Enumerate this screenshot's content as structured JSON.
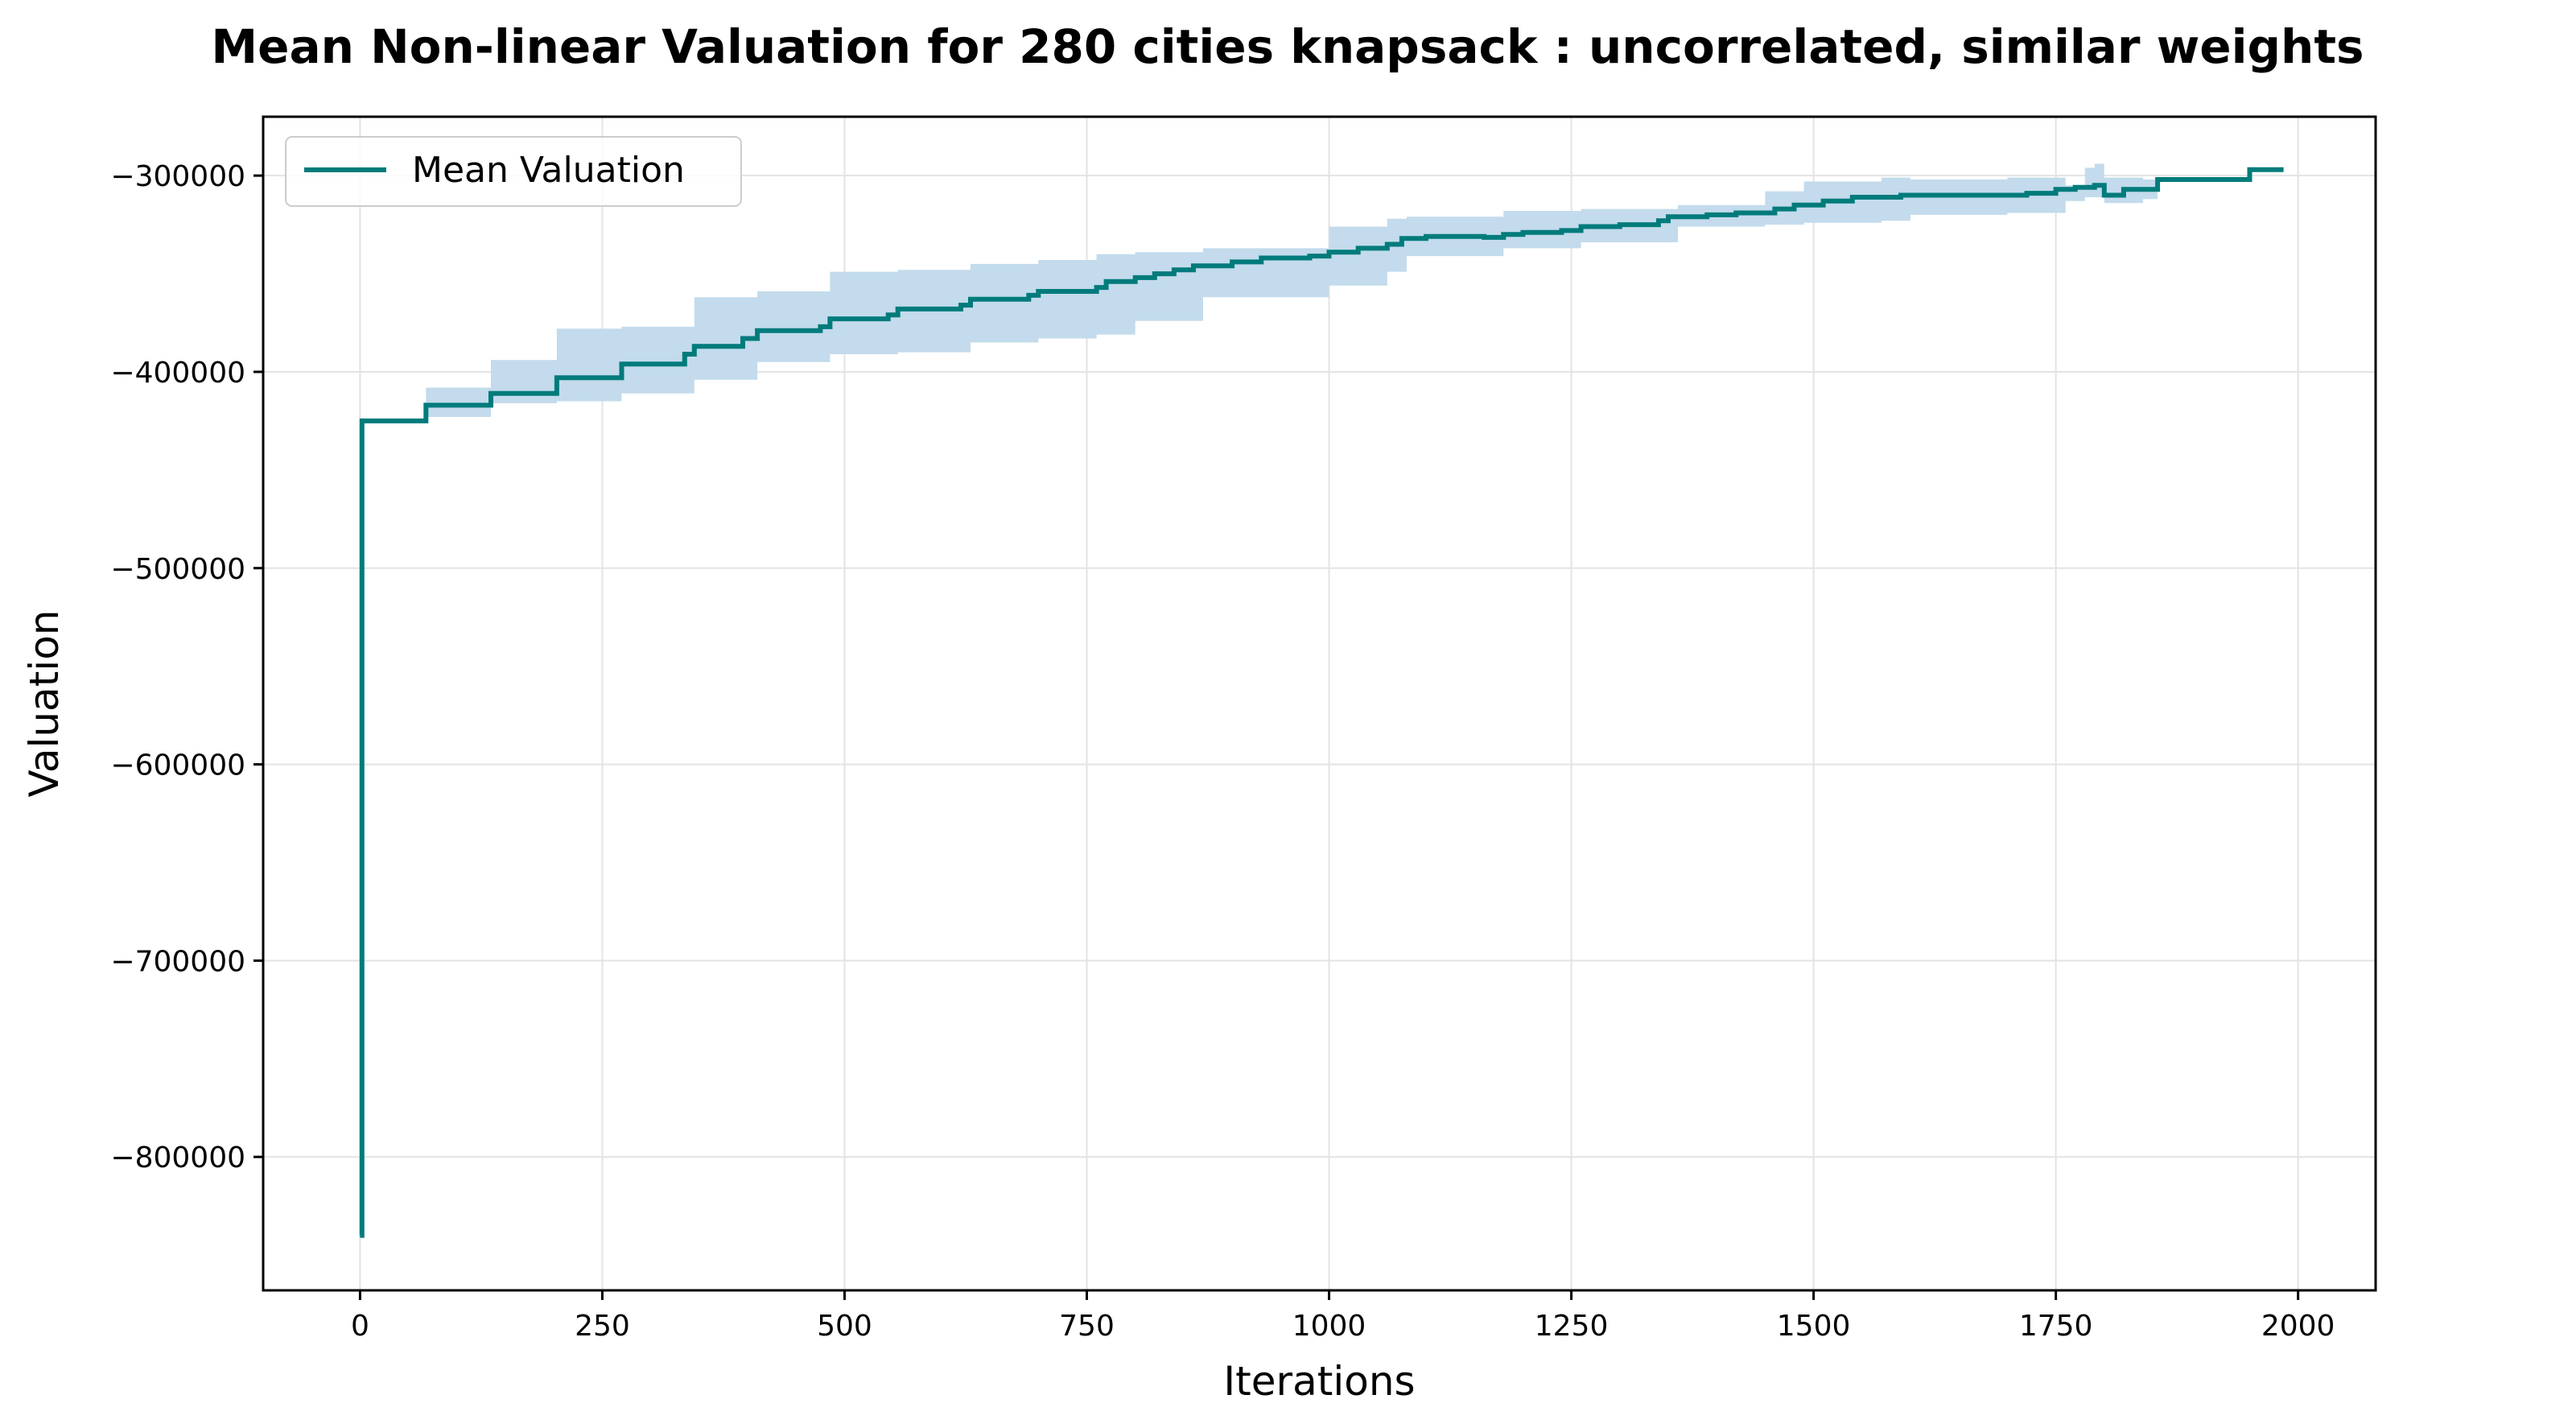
{
  "chart_data": {
    "type": "line",
    "title": "Mean Non-linear Valuation for 280 cities knapsack : uncorrelated, similar weights",
    "xlabel": "Iterations",
    "ylabel": "Valuation",
    "xlim": [
      -100,
      2080
    ],
    "ylim": [
      -868000,
      -270000
    ],
    "x_ticks": [
      0,
      250,
      500,
      750,
      1000,
      1250,
      1500,
      1750,
      2000
    ],
    "x_tick_labels": [
      "0",
      "250",
      "500",
      "750",
      "1000",
      "1250",
      "1500",
      "1750",
      "2000"
    ],
    "y_ticks": [
      -300000,
      -400000,
      -500000,
      -600000,
      -700000,
      -800000
    ],
    "y_tick_labels": [
      "−300000",
      "−400000",
      "−500000",
      "−600000",
      "−700000",
      "−800000"
    ],
    "grid": true,
    "legend_position": "top-left",
    "series": [
      {
        "name": "Mean Valuation",
        "color": "#007b7b",
        "band_color": "#c3dbec",
        "step": [
          [
            0,
            -840000
          ],
          [
            2,
            -425000
          ],
          [
            68,
            -417000
          ],
          [
            135,
            -411000
          ],
          [
            203,
            -403000
          ],
          [
            270,
            -396000
          ],
          [
            335,
            -391000
          ],
          [
            345,
            -387000
          ],
          [
            395,
            -383000
          ],
          [
            410,
            -379000
          ],
          [
            475,
            -377000
          ],
          [
            485,
            -373000
          ],
          [
            545,
            -371000
          ],
          [
            555,
            -368000
          ],
          [
            620,
            -366000
          ],
          [
            630,
            -363000
          ],
          [
            690,
            -361000
          ],
          [
            700,
            -359000
          ],
          [
            760,
            -357000
          ],
          [
            770,
            -354000
          ],
          [
            800,
            -352000
          ],
          [
            820,
            -350000
          ],
          [
            840,
            -348000
          ],
          [
            860,
            -346000
          ],
          [
            900,
            -344000
          ],
          [
            930,
            -342000
          ],
          [
            980,
            -341000
          ],
          [
            1000,
            -339000
          ],
          [
            1030,
            -337000
          ],
          [
            1060,
            -335000
          ],
          [
            1075,
            -332000
          ],
          [
            1100,
            -331000
          ],
          [
            1160,
            -331500
          ],
          [
            1180,
            -330000
          ],
          [
            1200,
            -329000
          ],
          [
            1240,
            -328000
          ],
          [
            1260,
            -326000
          ],
          [
            1300,
            -325000
          ],
          [
            1340,
            -323000
          ],
          [
            1350,
            -321000
          ],
          [
            1390,
            -320000
          ],
          [
            1420,
            -319000
          ],
          [
            1460,
            -317000
          ],
          [
            1480,
            -315000
          ],
          [
            1510,
            -313000
          ],
          [
            1540,
            -311000
          ],
          [
            1590,
            -310000
          ],
          [
            1660,
            -310000
          ],
          [
            1720,
            -309000
          ],
          [
            1750,
            -307000
          ],
          [
            1770,
            -306000
          ],
          [
            1790,
            -305000
          ],
          [
            1800,
            -310000
          ],
          [
            1820,
            -307000
          ],
          [
            1855,
            -302000
          ],
          [
            1950,
            -297000
          ],
          [
            1985,
            -297000
          ]
        ],
        "band": [
          [
            0,
            -840000,
            -840000
          ],
          [
            2,
            -425000,
            -425000
          ],
          [
            68,
            -423000,
            -408000
          ],
          [
            135,
            -416000,
            -394000
          ],
          [
            203,
            -415000,
            -378000
          ],
          [
            270,
            -411000,
            -377000
          ],
          [
            345,
            -404000,
            -362000
          ],
          [
            410,
            -395000,
            -359000
          ],
          [
            485,
            -391000,
            -349000
          ],
          [
            555,
            -390000,
            -348000
          ],
          [
            630,
            -385000,
            -345000
          ],
          [
            700,
            -383000,
            -343000
          ],
          [
            760,
            -381000,
            -340000
          ],
          [
            800,
            -374000,
            -339000
          ],
          [
            870,
            -362000,
            -337000
          ],
          [
            1000,
            -356000,
            -326000
          ],
          [
            1060,
            -349000,
            -322000
          ],
          [
            1080,
            -341000,
            -321000
          ],
          [
            1180,
            -337000,
            -318000
          ],
          [
            1260,
            -334000,
            -317000
          ],
          [
            1360,
            -326000,
            -315000
          ],
          [
            1450,
            -325000,
            -308000
          ],
          [
            1490,
            -324000,
            -303000
          ],
          [
            1570,
            -323000,
            -301000
          ],
          [
            1600,
            -320000,
            -302000
          ],
          [
            1700,
            -319000,
            -301000
          ],
          [
            1760,
            -313000,
            -305000
          ],
          [
            1780,
            -311000,
            -296000
          ],
          [
            1790,
            -311000,
            -294000
          ],
          [
            1800,
            -314000,
            -301000
          ],
          [
            1840,
            -312000,
            -302000
          ],
          [
            1855,
            -302000,
            -302000
          ],
          [
            1950,
            -297000,
            -297000
          ],
          [
            1985,
            -297000,
            -297000
          ]
        ]
      }
    ]
  }
}
